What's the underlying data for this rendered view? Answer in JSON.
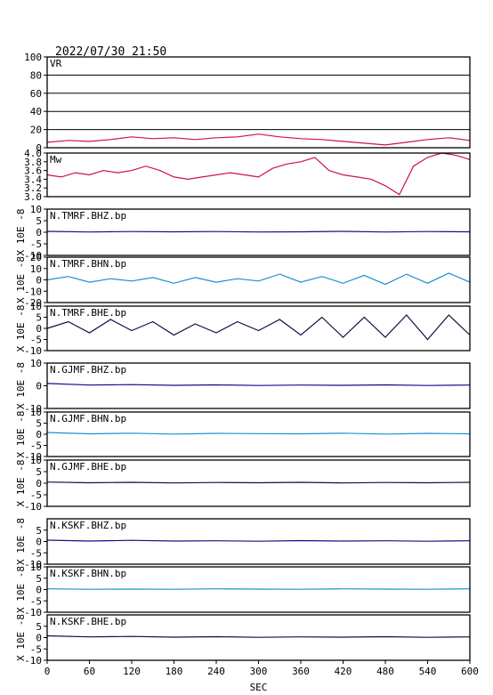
{
  "header": {
    "timestamp": "2022/07/30 21:50"
  },
  "chart_data": {
    "type": "line",
    "x": {
      "label": "SEC",
      "range": [
        0,
        600
      ],
      "ticks": [
        "0",
        "60",
        "120",
        "180",
        "240",
        "300",
        "360",
        "420",
        "480",
        "540",
        "600"
      ]
    },
    "colors": {
      "vr": "#d0104a",
      "mw": "#d0104a",
      "bhz": "#10108a",
      "bhn": "#1a90d0",
      "bhe": "#101040",
      "frame": "#000000",
      "grid": "#000000"
    },
    "panels": [
      {
        "id": "vr",
        "label": "VR",
        "ylim": [
          0,
          100
        ],
        "yticks": [
          "100",
          "80",
          "60",
          "40",
          "20",
          "0"
        ],
        "grid": true,
        "points": [
          [
            0,
            6
          ],
          [
            30,
            8
          ],
          [
            60,
            7
          ],
          [
            90,
            9
          ],
          [
            120,
            12
          ],
          [
            150,
            10
          ],
          [
            180,
            11
          ],
          [
            210,
            9
          ],
          [
            240,
            11
          ],
          [
            270,
            12
          ],
          [
            300,
            15
          ],
          [
            330,
            12
          ],
          [
            360,
            10
          ],
          [
            390,
            9
          ],
          [
            420,
            7
          ],
          [
            450,
            5
          ],
          [
            480,
            3
          ],
          [
            510,
            6
          ],
          [
            540,
            9
          ],
          [
            570,
            11
          ],
          [
            600,
            8
          ]
        ]
      },
      {
        "id": "mw",
        "label": "Mw",
        "ylim": [
          3.0,
          4.0
        ],
        "yticks": [
          "4.0",
          "3.8",
          "3.6",
          "3.4",
          "3.2",
          "3.0"
        ],
        "points": [
          [
            0,
            3.5
          ],
          [
            20,
            3.45
          ],
          [
            40,
            3.55
          ],
          [
            60,
            3.5
          ],
          [
            80,
            3.6
          ],
          [
            100,
            3.55
          ],
          [
            120,
            3.6
          ],
          [
            140,
            3.7
          ],
          [
            160,
            3.6
          ],
          [
            180,
            3.45
          ],
          [
            200,
            3.4
          ],
          [
            220,
            3.45
          ],
          [
            240,
            3.5
          ],
          [
            260,
            3.55
          ],
          [
            280,
            3.5
          ],
          [
            300,
            3.45
          ],
          [
            320,
            3.65
          ],
          [
            340,
            3.75
          ],
          [
            360,
            3.8
          ],
          [
            380,
            3.9
          ],
          [
            400,
            3.6
          ],
          [
            420,
            3.5
          ],
          [
            440,
            3.45
          ],
          [
            460,
            3.4
          ],
          [
            480,
            3.25
          ],
          [
            500,
            3.05
          ],
          [
            520,
            3.7
          ],
          [
            540,
            3.9
          ],
          [
            560,
            4.0
          ],
          [
            580,
            3.95
          ],
          [
            600,
            3.85
          ]
        ]
      },
      {
        "id": "tmrf-bhz",
        "label": "N.TMRF.BHZ.bp",
        "channel": "bhz",
        "ylim": [
          -10,
          10
        ],
        "yticks": [
          "10",
          "5",
          "0",
          "-5",
          "-10"
        ],
        "ylabel": "X 10E -8",
        "points": [
          [
            0,
            0.4
          ],
          [
            60,
            0.1
          ],
          [
            120,
            0.3
          ],
          [
            180,
            0.2
          ],
          [
            240,
            0.3
          ],
          [
            300,
            0.1
          ],
          [
            360,
            0.2
          ],
          [
            420,
            0.4
          ],
          [
            480,
            0.1
          ],
          [
            540,
            0.3
          ],
          [
            600,
            0.2
          ]
        ]
      },
      {
        "id": "tmrf-bhn",
        "label": "N.TMRF.BHN.bp",
        "channel": "bhn",
        "ylim": [
          -20,
          20
        ],
        "yticks": [
          "20",
          "10",
          "0",
          "-10",
          "-20"
        ],
        "ylabel": "X 10E -8",
        "points": [
          [
            0,
            0
          ],
          [
            30,
            3
          ],
          [
            60,
            -2
          ],
          [
            90,
            1
          ],
          [
            120,
            -1
          ],
          [
            150,
            2
          ],
          [
            180,
            -3
          ],
          [
            210,
            2
          ],
          [
            240,
            -2
          ],
          [
            270,
            1
          ],
          [
            300,
            -1
          ],
          [
            330,
            5
          ],
          [
            360,
            -2
          ],
          [
            390,
            3
          ],
          [
            420,
            -3
          ],
          [
            450,
            4
          ],
          [
            480,
            -4
          ],
          [
            510,
            5
          ],
          [
            540,
            -3
          ],
          [
            570,
            6
          ],
          [
            600,
            -2
          ]
        ]
      },
      {
        "id": "tmrf-bhe",
        "label": "N.TMRF.BHE.bp",
        "channel": "bhe",
        "ylim": [
          -10,
          10
        ],
        "yticks": [
          "10",
          "5",
          "0",
          "-5",
          "-10"
        ],
        "ylabel": "X 10E -8",
        "points": [
          [
            0,
            0
          ],
          [
            30,
            3
          ],
          [
            60,
            -2
          ],
          [
            90,
            4
          ],
          [
            120,
            -1
          ],
          [
            150,
            3
          ],
          [
            180,
            -3
          ],
          [
            210,
            2
          ],
          [
            240,
            -2
          ],
          [
            270,
            3
          ],
          [
            300,
            -1
          ],
          [
            330,
            4
          ],
          [
            360,
            -3
          ],
          [
            390,
            5
          ],
          [
            420,
            -4
          ],
          [
            450,
            5
          ],
          [
            480,
            -4
          ],
          [
            510,
            6
          ],
          [
            540,
            -5
          ],
          [
            570,
            6
          ],
          [
            600,
            -3
          ]
        ]
      },
      {
        "id": "gjmf-bhz",
        "label": "N.GJMF.BHZ.bp",
        "channel": "bhz",
        "ylim": [
          -10,
          10
        ],
        "yticks": [
          "10",
          "0",
          "-10"
        ],
        "ylabel": "X 10E -8",
        "points": [
          [
            0,
            1
          ],
          [
            60,
            0.3
          ],
          [
            120,
            0.5
          ],
          [
            180,
            0.2
          ],
          [
            240,
            0.4
          ],
          [
            300,
            0.1
          ],
          [
            360,
            0.3
          ],
          [
            420,
            0.2
          ],
          [
            480,
            0.4
          ],
          [
            540,
            0.1
          ],
          [
            600,
            0.3
          ]
        ]
      },
      {
        "id": "gjmf-bhn",
        "label": "N.GJMF.BHN.bp",
        "channel": "bhn",
        "ylim": [
          -10,
          10
        ],
        "yticks": [
          "10",
          "5",
          "0",
          "-5",
          "-10"
        ],
        "ylabel": "X 10E -8",
        "points": [
          [
            0,
            0.8
          ],
          [
            60,
            0.2
          ],
          [
            120,
            0.5
          ],
          [
            180,
            0.1
          ],
          [
            240,
            0.4
          ],
          [
            300,
            0.3
          ],
          [
            360,
            0.2
          ],
          [
            420,
            0.5
          ],
          [
            480,
            0.1
          ],
          [
            540,
            0.4
          ],
          [
            600,
            0.2
          ]
        ]
      },
      {
        "id": "gjmf-bhe",
        "label": "N.GJMF.BHE.bp",
        "channel": "bhe",
        "ylim": [
          -10,
          10
        ],
        "yticks": [
          "10",
          "5",
          "0",
          "-5",
          "-10"
        ],
        "ylabel": "X 10E -8",
        "points": [
          [
            0,
            0.5
          ],
          [
            60,
            0.2
          ],
          [
            120,
            0.4
          ],
          [
            180,
            0.1
          ],
          [
            240,
            0.3
          ],
          [
            300,
            0.2
          ],
          [
            360,
            0.4
          ],
          [
            420,
            0.1
          ],
          [
            480,
            0.3
          ],
          [
            540,
            0.2
          ],
          [
            600,
            0.4
          ]
        ]
      },
      {
        "id": "kskf-bhz",
        "label": "N.KSKF.BHZ.bp",
        "channel": "bhz",
        "ylim": [
          -10,
          10
        ],
        "yticks": [
          "5",
          "0",
          "-5",
          "-10"
        ],
        "ylabel": "X 10E -8",
        "points": [
          [
            0,
            0.6
          ],
          [
            60,
            0.2
          ],
          [
            120,
            0.5
          ],
          [
            180,
            0.2
          ],
          [
            240,
            0.3
          ],
          [
            300,
            0.1
          ],
          [
            360,
            0.4
          ],
          [
            420,
            0.2
          ],
          [
            480,
            0.3
          ],
          [
            540,
            0.1
          ],
          [
            600,
            0.3
          ]
        ]
      },
      {
        "id": "kskf-bhn",
        "label": "N.KSKF.BHN.bp",
        "channel": "bhn",
        "ylim": [
          -10,
          10
        ],
        "yticks": [
          "10",
          "5",
          "0",
          "-5",
          "-10"
        ],
        "ylabel": "X 10E -8",
        "points": [
          [
            0,
            0.3
          ],
          [
            60,
            0.1
          ],
          [
            120,
            0.2
          ],
          [
            180,
            0.1
          ],
          [
            240,
            0.3
          ],
          [
            300,
            0.2
          ],
          [
            360,
            0.1
          ],
          [
            420,
            0.3
          ],
          [
            480,
            0.2
          ],
          [
            540,
            0.1
          ],
          [
            600,
            0.3
          ]
        ]
      },
      {
        "id": "kskf-bhe",
        "label": "N.KSKF.BHE.bp",
        "channel": "bhe",
        "ylim": [
          -10,
          10
        ],
        "yticks": [
          "5",
          "0",
          "-5",
          "-10"
        ],
        "ylabel": "X 10E -8",
        "points": [
          [
            0,
            0.8
          ],
          [
            60,
            0.3
          ],
          [
            120,
            0.5
          ],
          [
            180,
            0.2
          ],
          [
            240,
            0.4
          ],
          [
            300,
            0.1
          ],
          [
            360,
            0.3
          ],
          [
            420,
            0.2
          ],
          [
            480,
            0.4
          ],
          [
            540,
            0.1
          ],
          [
            600,
            0.3
          ]
        ]
      }
    ]
  }
}
